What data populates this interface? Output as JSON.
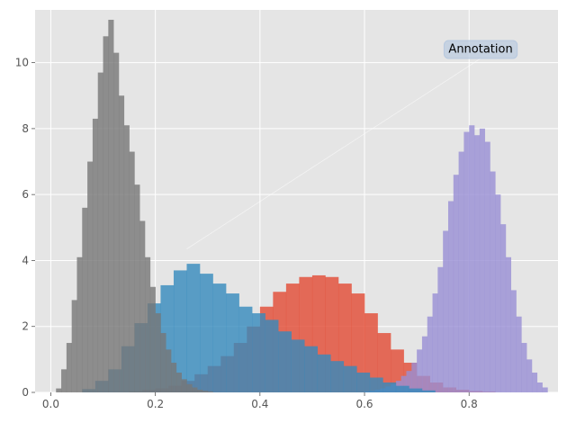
{
  "chart_data": {
    "type": "histogram",
    "style": "ggplot",
    "grid": true,
    "xlim": [
      -0.03,
      0.97
    ],
    "ylim": [
      0,
      11.6
    ],
    "xticks": [
      {
        "value": 0.0,
        "label": "0.0"
      },
      {
        "value": 0.2,
        "label": "0.2"
      },
      {
        "value": 0.4,
        "label": "0.4"
      },
      {
        "value": 0.6,
        "label": "0.6"
      },
      {
        "value": 0.8,
        "label": "0.8"
      }
    ],
    "yticks": [
      {
        "value": 0,
        "label": "0"
      },
      {
        "value": 2,
        "label": "2"
      },
      {
        "value": 4,
        "label": "4"
      },
      {
        "value": 6,
        "label": "6"
      },
      {
        "value": 8,
        "label": "8"
      },
      {
        "value": 10,
        "label": "10"
      }
    ],
    "series": [
      {
        "color": "#E24A33",
        "bin_start": 0.15,
        "bin_width": 0.025,
        "values": [
          0.03,
          0.08,
          0.12,
          0.2,
          0.35,
          0.55,
          0.8,
          1.1,
          1.5,
          2.0,
          2.6,
          3.05,
          3.3,
          3.5,
          3.55,
          3.5,
          3.3,
          3.0,
          2.4,
          1.8,
          1.3,
          0.9,
          0.5,
          0.3,
          0.15,
          0.08,
          0.04,
          0.02
        ]
      },
      {
        "color": "#988ED5",
        "bin_start": 0.6,
        "bin_width": 0.01,
        "values": [
          0.03,
          0.05,
          0.08,
          0.12,
          0.18,
          0.25,
          0.35,
          0.5,
          0.65,
          0.9,
          1.3,
          1.7,
          2.3,
          3.0,
          3.8,
          4.9,
          5.8,
          6.6,
          7.3,
          7.9,
          8.1,
          7.8,
          8.0,
          7.6,
          6.7,
          6.0,
          5.1,
          4.1,
          3.1,
          2.3,
          1.5,
          1.0,
          0.6,
          0.3,
          0.15
        ]
      },
      {
        "color": "#348ABD",
        "bin_start": 0.06,
        "bin_width": 0.025,
        "values": [
          0.1,
          0.35,
          0.7,
          1.4,
          2.1,
          2.7,
          3.25,
          3.7,
          3.9,
          3.6,
          3.3,
          3.0,
          2.6,
          2.4,
          2.2,
          1.85,
          1.6,
          1.4,
          1.15,
          0.95,
          0.8,
          0.6,
          0.45,
          0.3,
          0.2,
          0.12,
          0.06
        ]
      },
      {
        "color": "#777777",
        "bin_start": 0.01,
        "bin_width": 0.01,
        "values": [
          0.12,
          0.7,
          1.5,
          2.8,
          4.1,
          5.6,
          7.0,
          8.3,
          9.7,
          10.8,
          11.3,
          10.3,
          9.0,
          8.1,
          7.3,
          6.3,
          5.2,
          4.1,
          3.2,
          2.4,
          1.8,
          1.3,
          0.9,
          0.6,
          0.4,
          0.25,
          0.15,
          0.08,
          0.05,
          0.03
        ]
      }
    ],
    "annotation": {
      "text": "Annotation",
      "xy": [
        0.26,
        4.35
      ],
      "xytext": [
        0.755,
        10.4
      ]
    }
  }
}
